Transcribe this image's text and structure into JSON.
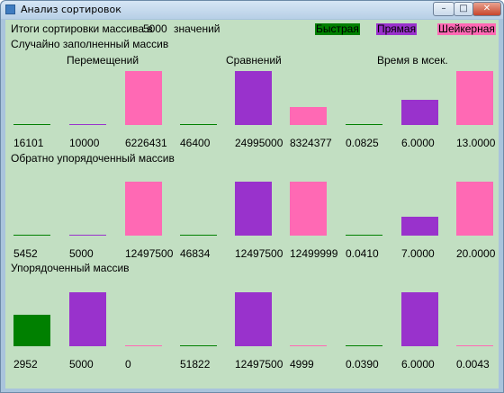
{
  "window": {
    "title": "Анализ сортировок",
    "minimize": "–",
    "maximize": "□",
    "close": "✕"
  },
  "header": {
    "summary_prefix": "Итоги сортировки массива в",
    "array_size": "5000",
    "summary_suffix": "значений"
  },
  "legend": [
    {
      "label": "Быстрая",
      "color": "#008000"
    },
    {
      "label": "Прямая",
      "color": "#9932cc"
    },
    {
      "label": "Шейкерная",
      "color": "#ff69b4"
    }
  ],
  "columns": [
    "Перемещений",
    "Сравнений",
    "Время в мсек."
  ],
  "sections": [
    {
      "title": "Случайно заполненный массив",
      "values": [
        "16101",
        "10000",
        "6226431",
        "46400",
        "24995000",
        "8324377",
        "0.0825",
        "6.0000",
        "13.0000"
      ],
      "levels": [
        0.002,
        0.002,
        1,
        0.002,
        1,
        0.33,
        0.006,
        0.46,
        1
      ]
    },
    {
      "title": "Обратно упорядоченный массив",
      "values": [
        "5452",
        "5000",
        "12497500",
        "46834",
        "12497500",
        "12499999",
        "0.0410",
        "7.0000",
        "20.0000"
      ],
      "levels": [
        0.002,
        0.002,
        1,
        0.004,
        1,
        1,
        0.002,
        0.35,
        1
      ]
    },
    {
      "title": "Упорядоченный массив",
      "values": [
        "2952",
        "5000",
        "0",
        "51822",
        "12497500",
        "4999",
        "0.0390",
        "6.0000",
        "0.0043"
      ],
      "levels": [
        0.59,
        1,
        0,
        0.004,
        1,
        0.0004,
        0.006,
        1,
        0.0007
      ]
    }
  ]
}
